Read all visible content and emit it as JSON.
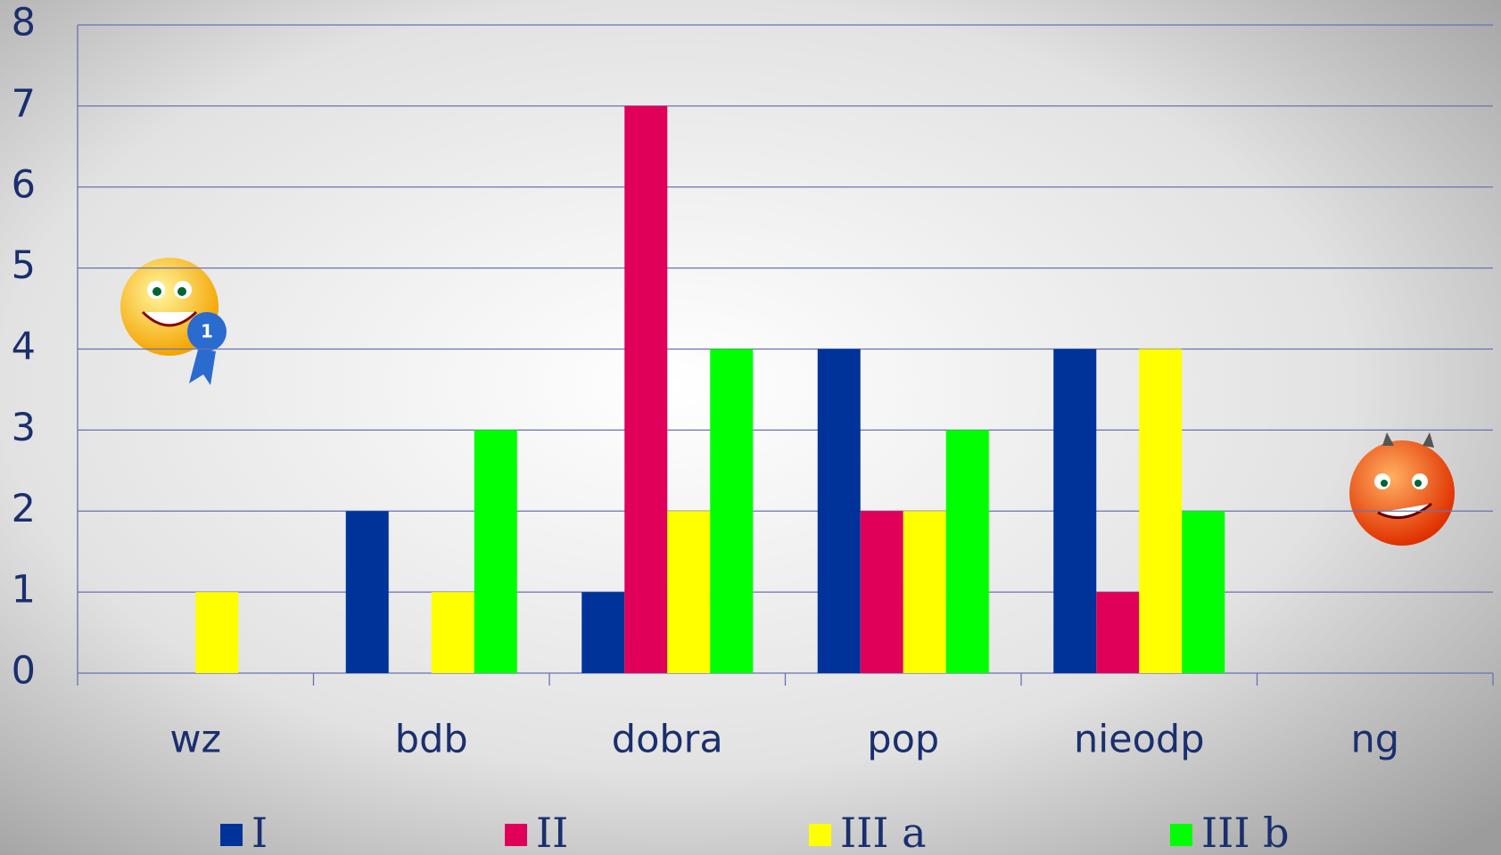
{
  "chart_data": {
    "type": "bar",
    "categories": [
      "wz",
      "bdb",
      "dobra",
      "pop",
      "nieodp",
      "ng"
    ],
    "series": [
      {
        "name": "I",
        "color": "#003399",
        "values": [
          0,
          2,
          1,
          4,
          4,
          0
        ]
      },
      {
        "name": "II",
        "color": "#e0005a",
        "values": [
          0,
          0,
          7,
          2,
          1,
          0
        ]
      },
      {
        "name": "III a",
        "color": "#ffff00",
        "values": [
          1,
          1,
          2,
          2,
          4,
          0
        ]
      },
      {
        "name": "III b",
        "color": "#00ff00",
        "values": [
          0,
          3,
          4,
          3,
          2,
          0
        ]
      }
    ],
    "ylim": [
      0,
      8
    ],
    "yticks": [
      0,
      1,
      2,
      3,
      4,
      5,
      6,
      7,
      8
    ],
    "grid": true,
    "legend": "bottom"
  }
}
